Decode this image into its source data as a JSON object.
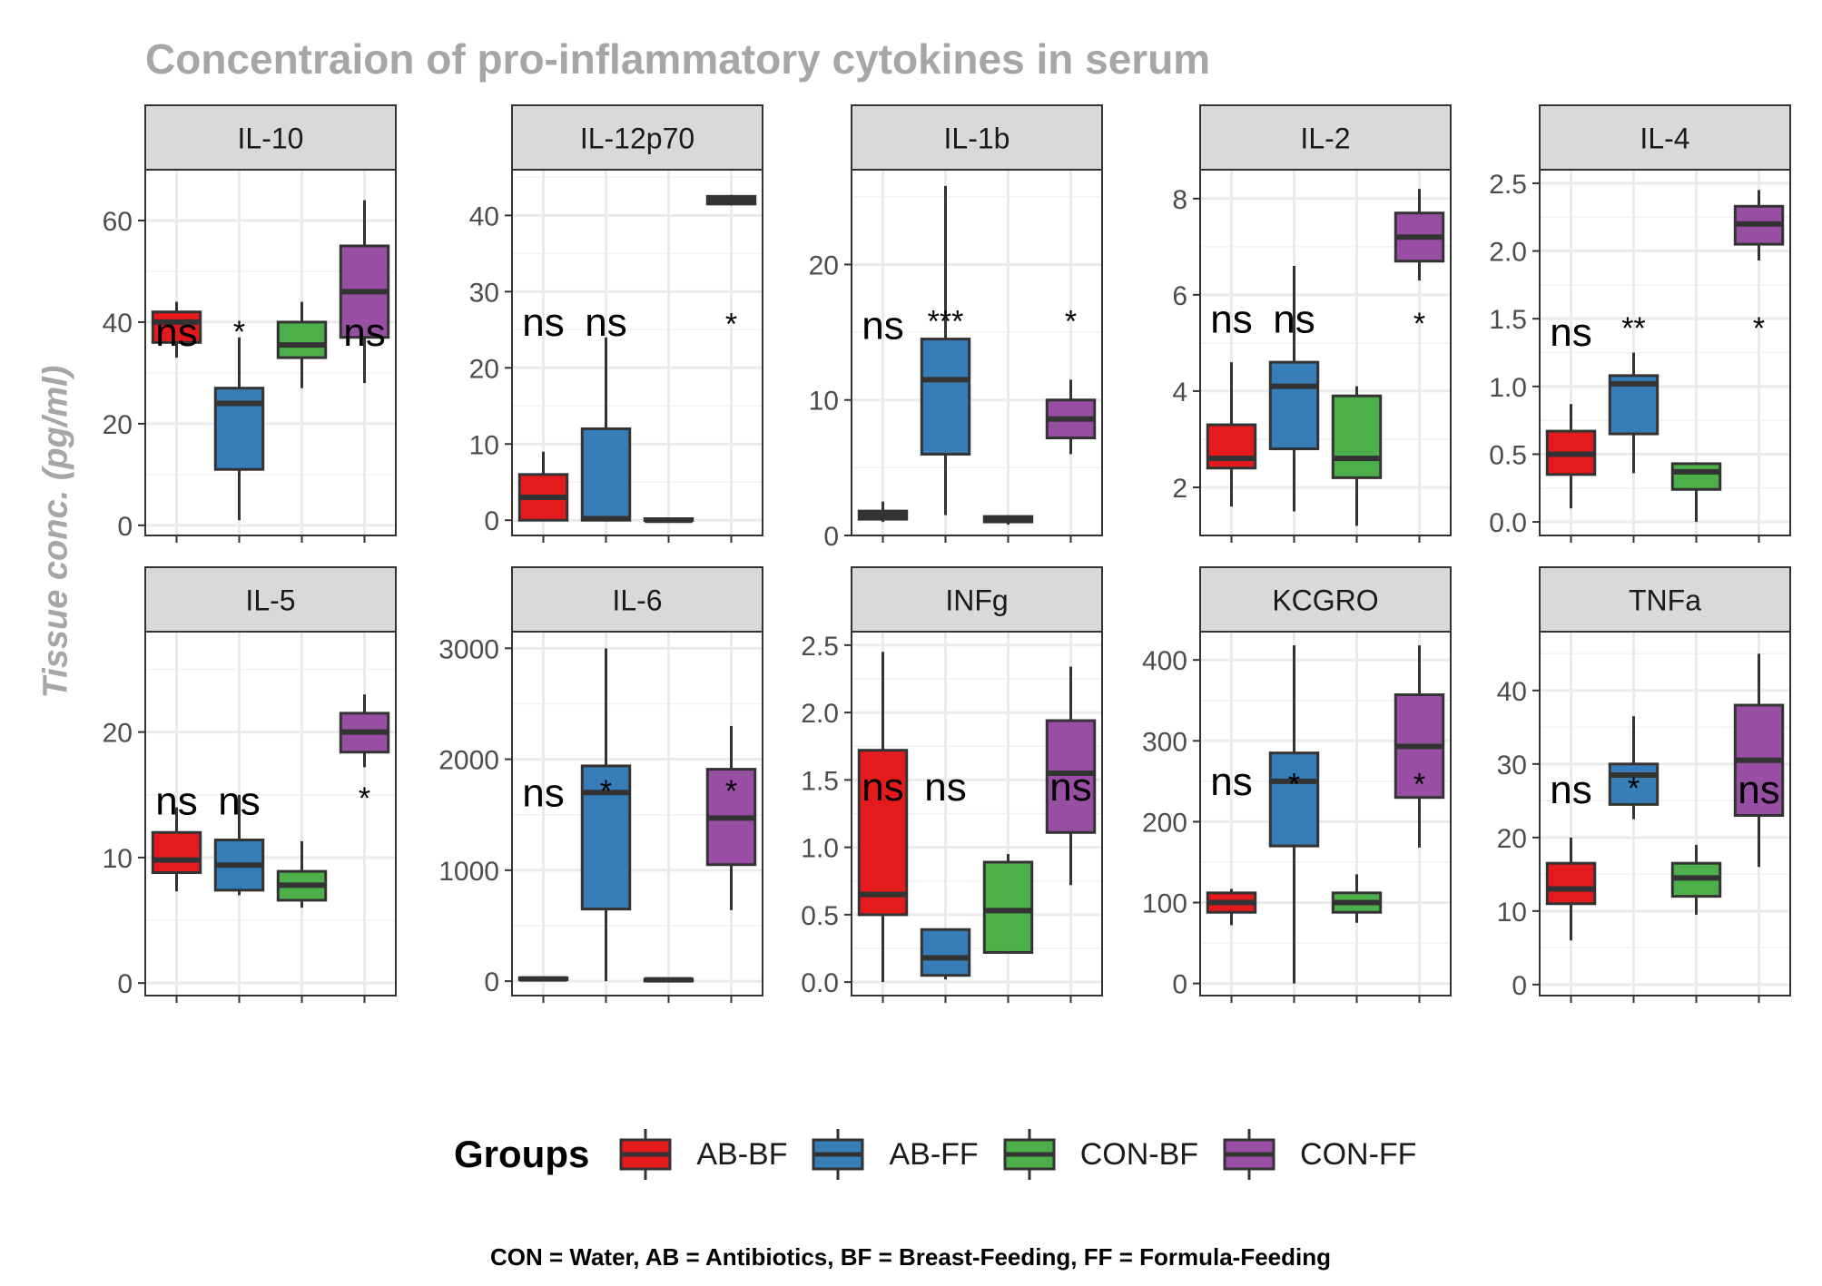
{
  "title": "Concentraion of pro-inflammatory cytokines in serum",
  "ylabel": "Tissue conc. (pg/ml)",
  "legend": {
    "title": "Groups",
    "items": [
      {
        "label": "AB-BF",
        "color": "#e41a1c"
      },
      {
        "label": "AB-FF",
        "color": "#377eb8"
      },
      {
        "label": "CON-BF",
        "color": "#4daf4a"
      },
      {
        "label": "CON-FF",
        "color": "#984ea3"
      }
    ]
  },
  "caption": "CON = Water, AB = Antibiotics, BF = Breast-Feeding, FF = Formula-Feeding",
  "chart_data": [
    {
      "type": "box",
      "facet": "IL-10",
      "ylim": [
        -2,
        70
      ],
      "ticks": [
        0,
        20,
        40,
        60
      ],
      "groups": [
        "AB-BF",
        "AB-FF",
        "CON-BF",
        "CON-FF"
      ],
      "boxes": [
        {
          "min": 33,
          "q1": 36,
          "median": 40,
          "q3": 42,
          "max": 44
        },
        {
          "min": 1,
          "q1": 11,
          "median": 24,
          "q3": 27,
          "max": 37
        },
        {
          "min": 27,
          "q1": 33,
          "median": 35.5,
          "q3": 40,
          "max": 44
        },
        {
          "min": 28,
          "q1": 37,
          "median": 46,
          "q3": 55,
          "max": 64
        }
      ],
      "labels": [
        {
          "group": "AB-BF",
          "text": "ns",
          "y": 38
        },
        {
          "group": "AB-FF",
          "text": "*",
          "y": 40
        },
        {
          "group": "CON-FF",
          "text": "ns",
          "y": 38
        }
      ]
    },
    {
      "type": "box",
      "facet": "IL-12p70",
      "ylim": [
        -2,
        46
      ],
      "ticks": [
        0,
        10,
        20,
        30,
        40
      ],
      "groups": [
        "AB-BF",
        "AB-FF",
        "CON-BF",
        "CON-FF"
      ],
      "boxes": [
        {
          "min": 0,
          "q1": 0,
          "median": 3,
          "q3": 6,
          "max": 9
        },
        {
          "min": 0,
          "q1": 0,
          "median": 0.2,
          "q3": 12,
          "max": 24
        },
        {
          "min": 0,
          "q1": 0,
          "median": 0,
          "q3": 0.2,
          "max": 0.3
        },
        {
          "min": 41.3,
          "q1": 41.5,
          "median": 42,
          "q3": 42.5,
          "max": 42.7
        }
      ],
      "labels": [
        {
          "group": "AB-BF",
          "text": "ns",
          "y": 26
        },
        {
          "group": "AB-FF",
          "text": "ns",
          "y": 26
        },
        {
          "group": "CON-FF",
          "text": "*",
          "y": 27
        }
      ]
    },
    {
      "type": "box",
      "facet": "IL-1b",
      "ylim": [
        0,
        27
      ],
      "ticks": [
        0,
        10,
        20
      ],
      "groups": [
        "AB-BF",
        "AB-FF",
        "CON-BF",
        "CON-FF"
      ],
      "boxes": [
        {
          "min": 1.0,
          "q1": 1.2,
          "median": 1.5,
          "q3": 1.8,
          "max": 2.5
        },
        {
          "min": 1.5,
          "q1": 6,
          "median": 11.5,
          "q3": 14.5,
          "max": 25.8
        },
        {
          "min": 0.8,
          "q1": 1.0,
          "median": 1.2,
          "q3": 1.4,
          "max": 1.5
        },
        {
          "min": 6,
          "q1": 7.2,
          "median": 8.6,
          "q3": 10,
          "max": 11.5
        }
      ],
      "labels": [
        {
          "group": "AB-BF",
          "text": "ns",
          "y": 15.5
        },
        {
          "group": "AB-FF",
          "text": "***",
          "y": 16.5
        },
        {
          "group": "CON-FF",
          "text": "*",
          "y": 16.5
        }
      ]
    },
    {
      "type": "box",
      "facet": "IL-2",
      "ylim": [
        1,
        8.6
      ],
      "ticks": [
        2,
        4,
        6,
        8
      ],
      "groups": [
        "AB-BF",
        "AB-FF",
        "CON-BF",
        "CON-FF"
      ],
      "boxes": [
        {
          "min": 1.6,
          "q1": 2.4,
          "median": 2.6,
          "q3": 3.3,
          "max": 4.6
        },
        {
          "min": 1.5,
          "q1": 2.8,
          "median": 4.1,
          "q3": 4.6,
          "max": 6.6
        },
        {
          "min": 1.2,
          "q1": 2.2,
          "median": 2.6,
          "q3": 3.9,
          "max": 4.1
        },
        {
          "min": 6.3,
          "q1": 6.7,
          "median": 7.2,
          "q3": 7.7,
          "max": 8.2
        }
      ],
      "labels": [
        {
          "group": "AB-BF",
          "text": "ns",
          "y": 5.5
        },
        {
          "group": "AB-FF",
          "text": "ns",
          "y": 5.5
        },
        {
          "group": "CON-FF",
          "text": "*",
          "y": 5.6
        }
      ]
    },
    {
      "type": "box",
      "facet": "IL-4",
      "ylim": [
        -0.1,
        2.6
      ],
      "ticks": [
        0.0,
        0.5,
        1.0,
        1.5,
        2.0,
        2.5
      ],
      "tick_decimals": 1,
      "groups": [
        "AB-BF",
        "AB-FF",
        "CON-BF",
        "CON-FF"
      ],
      "boxes": [
        {
          "min": 0.1,
          "q1": 0.35,
          "median": 0.5,
          "q3": 0.67,
          "max": 0.87
        },
        {
          "min": 0.36,
          "q1": 0.65,
          "median": 1.02,
          "q3": 1.08,
          "max": 1.25
        },
        {
          "min": 0.0,
          "q1": 0.24,
          "median": 0.37,
          "q3": 0.43,
          "max": 0.44
        },
        {
          "min": 1.93,
          "q1": 2.05,
          "median": 2.2,
          "q3": 2.33,
          "max": 2.45
        }
      ],
      "labels": [
        {
          "group": "AB-BF",
          "text": "ns",
          "y": 1.4
        },
        {
          "group": "AB-FF",
          "text": "**",
          "y": 1.5
        },
        {
          "group": "CON-FF",
          "text": "*",
          "y": 1.5
        }
      ]
    },
    {
      "type": "box",
      "facet": "IL-5",
      "ylim": [
        -1,
        28
      ],
      "ticks": [
        0,
        10,
        20
      ],
      "groups": [
        "AB-BF",
        "AB-FF",
        "CON-BF",
        "CON-FF"
      ],
      "boxes": [
        {
          "min": 7.3,
          "q1": 8.8,
          "median": 9.8,
          "q3": 12,
          "max": 14
        },
        {
          "min": 7,
          "q1": 7.4,
          "median": 9.4,
          "q3": 11.4,
          "max": 15
        },
        {
          "min": 6,
          "q1": 6.6,
          "median": 7.8,
          "q3": 8.9,
          "max": 11.3
        },
        {
          "min": 17.2,
          "q1": 18.4,
          "median": 20,
          "q3": 21.5,
          "max": 23
        }
      ],
      "labels": [
        {
          "group": "AB-BF",
          "text": "ns",
          "y": 14.5
        },
        {
          "group": "AB-FF",
          "text": "ns",
          "y": 14.5
        },
        {
          "group": "CON-FF",
          "text": "*",
          "y": 15.5
        }
      ]
    },
    {
      "type": "box",
      "facet": "IL-6",
      "ylim": [
        -130,
        3150
      ],
      "ticks": [
        0,
        1000,
        2000,
        3000
      ],
      "groups": [
        "AB-BF",
        "AB-FF",
        "CON-BF",
        "CON-FF"
      ],
      "boxes": [
        {
          "min": 10,
          "q1": 15,
          "median": 20,
          "q3": 30,
          "max": 35
        },
        {
          "min": 0,
          "q1": 650,
          "median": 1700,
          "q3": 1940,
          "max": 3000
        },
        {
          "min": 5,
          "q1": 8,
          "median": 12,
          "q3": 18,
          "max": 22
        },
        {
          "min": 640,
          "q1": 1050,
          "median": 1470,
          "q3": 1910,
          "max": 2300
        }
      ],
      "labels": [
        {
          "group": "AB-BF",
          "text": "ns",
          "y": 1700
        },
        {
          "group": "AB-FF",
          "text": "*",
          "y": 1800
        },
        {
          "group": "CON-FF",
          "text": "*",
          "y": 1800
        }
      ]
    },
    {
      "type": "box",
      "facet": "INFg",
      "ylim": [
        -0.1,
        2.6
      ],
      "ticks": [
        0.0,
        0.5,
        1.0,
        1.5,
        2.0,
        2.5
      ],
      "tick_decimals": 1,
      "groups": [
        "AB-BF",
        "AB-FF",
        "CON-BF",
        "CON-FF"
      ],
      "boxes": [
        {
          "min": 0.0,
          "q1": 0.5,
          "median": 0.65,
          "q3": 1.72,
          "max": 2.45
        },
        {
          "min": 0.02,
          "q1": 0.05,
          "median": 0.18,
          "q3": 0.39,
          "max": 0.39
        },
        {
          "min": 0.22,
          "q1": 0.22,
          "median": 0.53,
          "q3": 0.89,
          "max": 0.95
        },
        {
          "min": 0.72,
          "q1": 1.11,
          "median": 1.55,
          "q3": 1.94,
          "max": 2.34
        }
      ],
      "labels": [
        {
          "group": "AB-BF",
          "text": "ns",
          "y": 1.45
        },
        {
          "group": "AB-FF",
          "text": "ns",
          "y": 1.45
        },
        {
          "group": "CON-FF",
          "text": "ns",
          "y": 1.45
        }
      ]
    },
    {
      "type": "box",
      "facet": "KCGRO",
      "ylim": [
        -15,
        435
      ],
      "ticks": [
        0,
        100,
        200,
        300,
        400
      ],
      "groups": [
        "AB-BF",
        "AB-FF",
        "CON-BF",
        "CON-FF"
      ],
      "boxes": [
        {
          "min": 72,
          "q1": 88,
          "median": 100,
          "q3": 112,
          "max": 117
        },
        {
          "min": 0,
          "q1": 170,
          "median": 250,
          "q3": 285,
          "max": 418
        },
        {
          "min": 75,
          "q1": 88,
          "median": 100,
          "q3": 112,
          "max": 135
        },
        {
          "min": 168,
          "q1": 230,
          "median": 293,
          "q3": 357,
          "max": 418
        }
      ],
      "labels": [
        {
          "group": "AB-BF",
          "text": "ns",
          "y": 250
        },
        {
          "group": "AB-FF",
          "text": "*",
          "y": 258
        },
        {
          "group": "CON-FF",
          "text": "*",
          "y": 258
        }
      ]
    },
    {
      "type": "box",
      "facet": "TNFa",
      "ylim": [
        -1.5,
        48
      ],
      "ticks": [
        0,
        10,
        20,
        30,
        40
      ],
      "groups": [
        "AB-BF",
        "AB-FF",
        "CON-BF",
        "CON-FF"
      ],
      "boxes": [
        {
          "min": 6,
          "q1": 11,
          "median": 13,
          "q3": 16.5,
          "max": 20
        },
        {
          "min": 22.5,
          "q1": 24.5,
          "median": 28.5,
          "q3": 30,
          "max": 36.5
        },
        {
          "min": 9.5,
          "q1": 12,
          "median": 14.5,
          "q3": 16.5,
          "max": 19
        },
        {
          "min": 16,
          "q1": 23,
          "median": 30.5,
          "q3": 38,
          "max": 45
        }
      ],
      "labels": [
        {
          "group": "AB-BF",
          "text": "ns",
          "y": 26.5
        },
        {
          "group": "AB-FF",
          "text": "*",
          "y": 28
        },
        {
          "group": "CON-FF",
          "text": "ns",
          "y": 26.5
        }
      ]
    }
  ]
}
